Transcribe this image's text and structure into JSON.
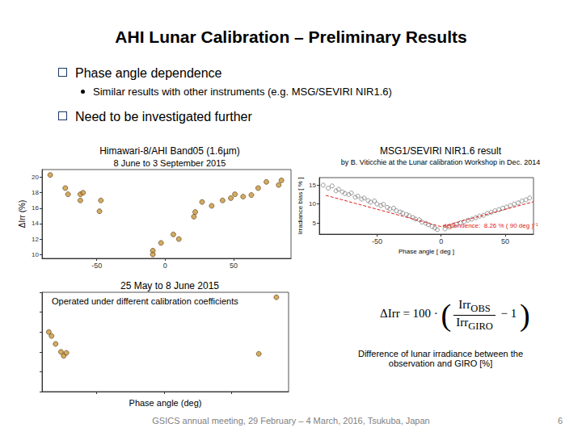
{
  "slide": {
    "title": "AHI Lunar Calibration – Preliminary Results",
    "bullets": [
      {
        "text": "Phase angle dependence",
        "sub": [
          "Similar results with other instruments (e.g. MSG/SEVIRI NIR1.6)"
        ]
      },
      {
        "text": "Need to be investigated further",
        "sub": []
      }
    ],
    "formula": {
      "lhs": "ΔIrr = 100 ·",
      "open": "(",
      "numerator": {
        "text": "Irr",
        "sub": "OBS"
      },
      "denominator": {
        "text": "Irr",
        "sub": "GIRO"
      },
      "tail": "− 1",
      "close": ")"
    },
    "formula_caption": "Difference of lunar irradiance between the observation and GIRO [%]",
    "footer": "GSICS annual meeting, 29 February – 4 March, 2016, Tsukuba, Japan",
    "page": 6
  },
  "chart_data": [
    {
      "type": "scatter",
      "title": "Himawari-8/AHI Band05 (1.6µm)",
      "subtitle": "8 June to 3 September 2015",
      "y_label": "ΔIrr (%)",
      "xlim": [
        -90,
        92
      ],
      "xticks": [
        -50,
        0,
        50
      ],
      "ylim": [
        9.5,
        21
      ],
      "yticks": [
        10,
        12,
        14,
        16,
        18,
        20
      ],
      "grid": false,
      "series": [
        {
          "type": "scatter",
          "color": "#c8963c",
          "marker": "circle",
          "x": [
            -84,
            -73,
            -71,
            -62,
            -62,
            -60,
            -48,
            -47,
            -9,
            -9,
            -3,
            6,
            10,
            21,
            22,
            27,
            34,
            42,
            48,
            51,
            57,
            63,
            68,
            74,
            83,
            85
          ],
          "values": [
            20.3,
            18.6,
            17.8,
            17.8,
            17.0,
            18.0,
            15.6,
            17.0,
            10.5,
            10.0,
            11.5,
            12.6,
            12.0,
            14.9,
            15.5,
            16.8,
            16.3,
            17.0,
            17.3,
            17.8,
            17.5,
            17.7,
            18.6,
            19.4,
            19.0,
            19.6
          ]
        }
      ]
    },
    {
      "type": "scatter",
      "title": "MSG1/SEVIRI NIR1.6 result",
      "subtitle": "by B. Viticchie at the Lunar calibration Workshop in Dec. 2014",
      "x_label": "Phase angle [ deg ]",
      "y_label": "Irradiance bias [ % ]",
      "annotation": "dependence:  8.26 % ( 90 deg )⁻¹",
      "xlim": [
        -95,
        72
      ],
      "xticks": [
        -50,
        0,
        50
      ],
      "ylim": [
        2,
        17
      ],
      "yticks": [
        5,
        10,
        15
      ],
      "grid": false,
      "series": [
        {
          "type": "scatter",
          "color": "#808080",
          "marker": "open_circle",
          "x": [
            -92,
            -88,
            -85,
            -82,
            -80,
            -77,
            -75,
            -72,
            -70,
            -67,
            -65,
            -62,
            -60,
            -57,
            -55,
            -52,
            -50,
            -47,
            -45,
            -42,
            -40,
            -37,
            -35,
            -32,
            -30,
            -27,
            -25,
            -22,
            -20,
            -17,
            -15,
            -12,
            -10,
            -7,
            -5,
            -3,
            3,
            6,
            9,
            12,
            15,
            18,
            21,
            24,
            27,
            30,
            33,
            36,
            39,
            42,
            45,
            48,
            51,
            54,
            57,
            60,
            63,
            66,
            69
          ],
          "values": [
            15.0,
            14.2,
            14.8,
            13.5,
            13.9,
            13.2,
            12.8,
            12.5,
            12.9,
            11.8,
            12.1,
            11.3,
            11.6,
            10.9,
            10.5,
            10.8,
            10.0,
            9.6,
            9.9,
            9.1,
            8.7,
            8.9,
            8.2,
            7.9,
            7.6,
            7.2,
            6.9,
            6.4,
            6.0,
            5.8,
            5.2,
            4.9,
            4.5,
            4.0,
            3.6,
            3.2,
            3.4,
            3.9,
            4.3,
            4.6,
            5.0,
            5.3,
            5.7,
            6.0,
            6.4,
            6.8,
            7.0,
            7.5,
            7.8,
            8.2,
            8.5,
            8.9,
            9.2,
            9.6,
            10.0,
            10.3,
            10.8,
            11.1,
            11.6
          ]
        },
        {
          "type": "line",
          "color": "#e02020",
          "line_style": "dashed",
          "x": [
            -90,
            0,
            72
          ],
          "values": [
            12.3,
            4.0,
            10.6
          ]
        }
      ]
    },
    {
      "type": "scatter",
      "title": "25 May to 8 June 2015",
      "x_label": "Phase angle (deg)",
      "annotation": "Operated under different calibration coefficients",
      "xlim": [
        -90,
        92
      ],
      "xticks": [
        -50,
        0,
        50
      ],
      "ylim": [
        10,
        20
      ],
      "yticks": [
        10,
        12,
        14,
        16,
        18,
        20
      ],
      "grid": false,
      "tick_labels": false,
      "series": [
        {
          "type": "scatter",
          "color": "#c8963c",
          "marker": "circle",
          "x": [
            -85,
            -83,
            -80,
            -76,
            -74,
            -72,
            70,
            83
          ],
          "values": [
            16.0,
            15.6,
            14.8,
            14.0,
            13.6,
            13.9,
            13.8,
            19.5
          ]
        }
      ]
    }
  ]
}
